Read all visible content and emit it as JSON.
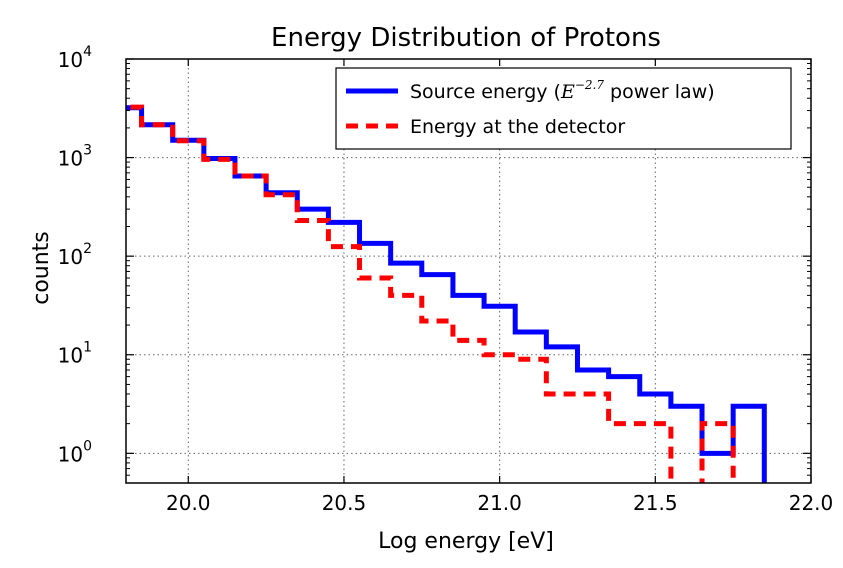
{
  "chart_data": {
    "type": "line",
    "title": "Energy Distribution of Protons",
    "xlabel": "Log energy [eV]",
    "ylabel": "counts",
    "xlim": [
      19.8,
      22.0
    ],
    "ylim": [
      0.5,
      10000
    ],
    "yscale": "log",
    "grid": true,
    "legend_position": "top-right",
    "x_ticks": [
      20.0,
      20.5,
      21.0,
      21.5,
      22.0
    ],
    "x_tick_labels": [
      "20.0",
      "20.5",
      "21.0",
      "21.5",
      "22.0"
    ],
    "y_ticks": [
      1,
      10,
      100,
      1000,
      10000
    ],
    "y_tick_base_labels": [
      "10",
      "10",
      "10",
      "10",
      "10"
    ],
    "y_tick_exponents": [
      "0",
      "1",
      "2",
      "3",
      "4"
    ],
    "bin_edges": [
      19.75,
      19.85,
      19.95,
      20.05,
      20.15,
      20.25,
      20.35,
      20.45,
      20.55,
      20.65,
      20.75,
      20.85,
      20.95,
      21.05,
      21.15,
      21.25,
      21.35,
      21.45,
      21.55,
      21.65,
      21.75,
      21.85,
      21.95
    ],
    "series": [
      {
        "name": "Source energy (",
        "name_math": "E",
        "name_math_exp": "−2.7",
        "name_suffix": " power law)",
        "color": "#0000ff",
        "style": "solid",
        "values": [
          3200,
          2150,
          1500,
          980,
          650,
          440,
          300,
          220,
          135,
          85,
          65,
          40,
          31,
          17,
          12,
          7,
          6,
          4,
          3,
          1,
          3,
          0
        ]
      },
      {
        "name": "Energy at the detector",
        "color": "#ff0000",
        "style": "dashed",
        "values": [
          3250,
          2150,
          1480,
          960,
          650,
          420,
          230,
          125,
          60,
          40,
          22,
          14,
          10,
          9,
          4,
          4,
          2,
          2,
          0,
          2,
          0,
          0
        ]
      }
    ]
  }
}
